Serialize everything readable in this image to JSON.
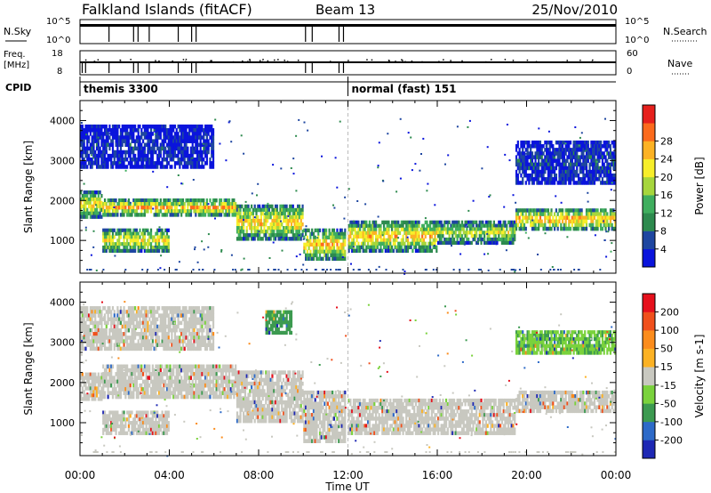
{
  "header": {
    "station": "Falkland Islands (fitACF)",
    "beam": "Beam 13",
    "date": "25/Nov/2010"
  },
  "strip_labels": {
    "nsky": "N.Sky",
    "nsearch": "N.Search",
    "freq_line1": "Freq.",
    "freq_line2": "[MHz]",
    "nave": "Nave",
    "cpid": "CPID",
    "ticks_n_top": "10^5",
    "ticks_n_bottom": "10^0",
    "ticks_freq_top": "18",
    "ticks_freq_bottom": "8",
    "ticks_nave_top": "60",
    "ticks_nave_bottom": "0"
  },
  "cpid_programs": [
    {
      "label": "themis 3300",
      "start_hour": 0
    },
    {
      "label": "normal (fast) 151",
      "start_hour": 12
    }
  ],
  "chart_data": [
    {
      "type": "heatmap",
      "name": "power",
      "xlabel": "Time UT",
      "ylabel": "Slant Range [km]",
      "xlim": [
        0,
        24
      ],
      "ylim": [
        180,
        4500
      ],
      "x_ticks": [
        "00:00",
        "04:00",
        "08:00",
        "12:00",
        "16:00",
        "20:00",
        "00:00"
      ],
      "y_ticks": [
        1000,
        2000,
        3000,
        4000
      ],
      "colorbar": {
        "label": "Power [dB]",
        "ticks": [
          "4",
          "8",
          "12",
          "16",
          "20",
          "24",
          "28"
        ],
        "colors": [
          "#0a14dc",
          "#1e46a0",
          "#2d8a4e",
          "#3fae5e",
          "#a6d63c",
          "#f7ee2a",
          "#fcb224",
          "#fb6a1c",
          "#e6201c"
        ]
      },
      "bands": [
        {
          "t0": 0.0,
          "t1": 1.0,
          "r0": 1550,
          "r1": 2250,
          "level": 0.65
        },
        {
          "t0": 1.0,
          "t1": 7.0,
          "r0": 1600,
          "r1": 2050,
          "level": 0.75
        },
        {
          "t0": 7.0,
          "t1": 10.0,
          "r0": 1000,
          "r1": 1900,
          "level": 0.7
        },
        {
          "t0": 10.0,
          "t1": 11.9,
          "r0": 500,
          "r1": 1300,
          "level": 0.7
        },
        {
          "t0": 12.0,
          "t1": 16.0,
          "r0": 700,
          "r1": 1500,
          "level": 0.7
        },
        {
          "t0": 16.0,
          "t1": 19.5,
          "r0": 900,
          "r1": 1500,
          "level": 0.55
        },
        {
          "t0": 19.5,
          "t1": 24.0,
          "r0": 1250,
          "r1": 1800,
          "level": 0.75
        },
        {
          "t0": 1.0,
          "t1": 4.0,
          "r0": 700,
          "r1": 1300,
          "level": 0.65
        },
        {
          "t0": 0.0,
          "t1": 6.0,
          "r0": 2800,
          "r1": 3900,
          "level": 0.1
        },
        {
          "t0": 19.5,
          "t1": 24.0,
          "r0": 2400,
          "r1": 3500,
          "level": 0.15
        }
      ]
    },
    {
      "type": "heatmap",
      "name": "velocity",
      "xlabel": "Time UT",
      "ylabel": "Slant Range [km]",
      "xlim": [
        0,
        24
      ],
      "ylim": [
        180,
        4500
      ],
      "x_ticks": [
        "00:00",
        "04:00",
        "08:00",
        "12:00",
        "16:00",
        "20:00",
        "00:00"
      ],
      "y_ticks": [
        1000,
        2000,
        3000,
        4000
      ],
      "colorbar": {
        "label": "Velocity [m s-1]",
        "ticks": [
          "200",
          "100",
          "50",
          "15",
          "-15",
          "-50",
          "-100",
          "-200"
        ],
        "colors": [
          "#1e28b4",
          "#2d6ac8",
          "#3c9a50",
          "#7ad23c",
          "#c8c8c0",
          "#fcb224",
          "#fb8c1c",
          "#f0501c",
          "#e6101c"
        ]
      },
      "bands": [
        {
          "t0": 0.0,
          "t1": 1.0,
          "r0": 1550,
          "r1": 2250,
          "level": 0.5
        },
        {
          "t0": 1.0,
          "t1": 7.0,
          "r0": 1600,
          "r1": 2450,
          "level": 0.5
        },
        {
          "t0": 7.0,
          "t1": 10.0,
          "r0": 1000,
          "r1": 2300,
          "level": 0.5
        },
        {
          "t0": 10.0,
          "t1": 11.9,
          "r0": 500,
          "r1": 1800,
          "level": 0.5
        },
        {
          "t0": 12.0,
          "t1": 19.5,
          "r0": 700,
          "r1": 1600,
          "level": 0.5
        },
        {
          "t0": 19.5,
          "t1": 24.0,
          "r0": 1250,
          "r1": 1800,
          "level": 0.5
        },
        {
          "t0": 1.0,
          "t1": 4.0,
          "r0": 700,
          "r1": 1300,
          "level": 0.5
        },
        {
          "t0": 0.0,
          "t1": 6.0,
          "r0": 2800,
          "r1": 3900,
          "level": 0.5
        },
        {
          "t0": 19.5,
          "t1": 24.0,
          "r0": 2700,
          "r1": 3300,
          "level": 0.35
        },
        {
          "t0": 8.3,
          "t1": 9.5,
          "r0": 3200,
          "r1": 3800,
          "level": 0.3
        }
      ]
    }
  ]
}
